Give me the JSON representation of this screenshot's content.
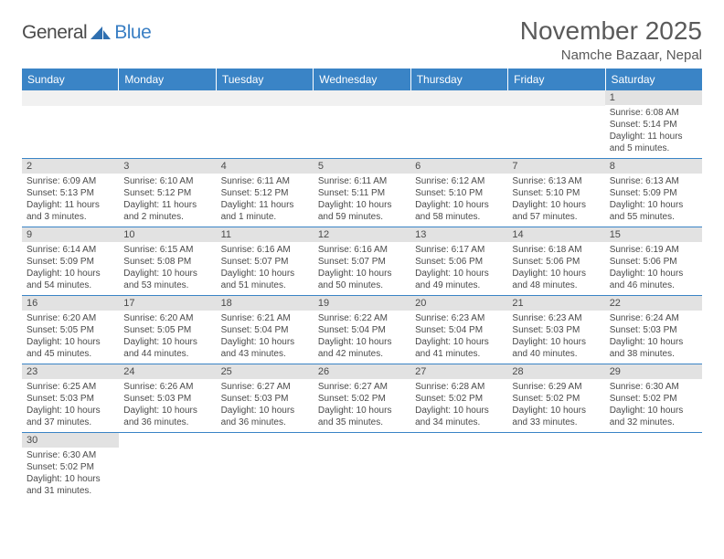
{
  "logo": {
    "text_dark": "General",
    "text_blue": "Blue",
    "dark_color": "#4a4a4a",
    "blue_color": "#3a7fc4",
    "shape_color": "#2f6fb0"
  },
  "title": "November 2025",
  "subtitle": "Namche Bazaar, Nepal",
  "header_bg": "#3a84c6",
  "header_fg": "#ffffff",
  "daynum_bg": "#e2e2e2",
  "row_border": "#3a84c6",
  "text_color": "#4a4a4a",
  "day_names": [
    "Sunday",
    "Monday",
    "Tuesday",
    "Wednesday",
    "Thursday",
    "Friday",
    "Saturday"
  ],
  "weeks": [
    [
      null,
      null,
      null,
      null,
      null,
      null,
      {
        "n": "1",
        "sr": "6:08 AM",
        "ss": "5:14 PM",
        "dl": "11 hours and 5 minutes."
      }
    ],
    [
      {
        "n": "2",
        "sr": "6:09 AM",
        "ss": "5:13 PM",
        "dl": "11 hours and 3 minutes."
      },
      {
        "n": "3",
        "sr": "6:10 AM",
        "ss": "5:12 PM",
        "dl": "11 hours and 2 minutes."
      },
      {
        "n": "4",
        "sr": "6:11 AM",
        "ss": "5:12 PM",
        "dl": "11 hours and 1 minute."
      },
      {
        "n": "5",
        "sr": "6:11 AM",
        "ss": "5:11 PM",
        "dl": "10 hours and 59 minutes."
      },
      {
        "n": "6",
        "sr": "6:12 AM",
        "ss": "5:10 PM",
        "dl": "10 hours and 58 minutes."
      },
      {
        "n": "7",
        "sr": "6:13 AM",
        "ss": "5:10 PM",
        "dl": "10 hours and 57 minutes."
      },
      {
        "n": "8",
        "sr": "6:13 AM",
        "ss": "5:09 PM",
        "dl": "10 hours and 55 minutes."
      }
    ],
    [
      {
        "n": "9",
        "sr": "6:14 AM",
        "ss": "5:09 PM",
        "dl": "10 hours and 54 minutes."
      },
      {
        "n": "10",
        "sr": "6:15 AM",
        "ss": "5:08 PM",
        "dl": "10 hours and 53 minutes."
      },
      {
        "n": "11",
        "sr": "6:16 AM",
        "ss": "5:07 PM",
        "dl": "10 hours and 51 minutes."
      },
      {
        "n": "12",
        "sr": "6:16 AM",
        "ss": "5:07 PM",
        "dl": "10 hours and 50 minutes."
      },
      {
        "n": "13",
        "sr": "6:17 AM",
        "ss": "5:06 PM",
        "dl": "10 hours and 49 minutes."
      },
      {
        "n": "14",
        "sr": "6:18 AM",
        "ss": "5:06 PM",
        "dl": "10 hours and 48 minutes."
      },
      {
        "n": "15",
        "sr": "6:19 AM",
        "ss": "5:06 PM",
        "dl": "10 hours and 46 minutes."
      }
    ],
    [
      {
        "n": "16",
        "sr": "6:20 AM",
        "ss": "5:05 PM",
        "dl": "10 hours and 45 minutes."
      },
      {
        "n": "17",
        "sr": "6:20 AM",
        "ss": "5:05 PM",
        "dl": "10 hours and 44 minutes."
      },
      {
        "n": "18",
        "sr": "6:21 AM",
        "ss": "5:04 PM",
        "dl": "10 hours and 43 minutes."
      },
      {
        "n": "19",
        "sr": "6:22 AM",
        "ss": "5:04 PM",
        "dl": "10 hours and 42 minutes."
      },
      {
        "n": "20",
        "sr": "6:23 AM",
        "ss": "5:04 PM",
        "dl": "10 hours and 41 minutes."
      },
      {
        "n": "21",
        "sr": "6:23 AM",
        "ss": "5:03 PM",
        "dl": "10 hours and 40 minutes."
      },
      {
        "n": "22",
        "sr": "6:24 AM",
        "ss": "5:03 PM",
        "dl": "10 hours and 38 minutes."
      }
    ],
    [
      {
        "n": "23",
        "sr": "6:25 AM",
        "ss": "5:03 PM",
        "dl": "10 hours and 37 minutes."
      },
      {
        "n": "24",
        "sr": "6:26 AM",
        "ss": "5:03 PM",
        "dl": "10 hours and 36 minutes."
      },
      {
        "n": "25",
        "sr": "6:27 AM",
        "ss": "5:03 PM",
        "dl": "10 hours and 36 minutes."
      },
      {
        "n": "26",
        "sr": "6:27 AM",
        "ss": "5:02 PM",
        "dl": "10 hours and 35 minutes."
      },
      {
        "n": "27",
        "sr": "6:28 AM",
        "ss": "5:02 PM",
        "dl": "10 hours and 34 minutes."
      },
      {
        "n": "28",
        "sr": "6:29 AM",
        "ss": "5:02 PM",
        "dl": "10 hours and 33 minutes."
      },
      {
        "n": "29",
        "sr": "6:30 AM",
        "ss": "5:02 PM",
        "dl": "10 hours and 32 minutes."
      }
    ],
    [
      {
        "n": "30",
        "sr": "6:30 AM",
        "ss": "5:02 PM",
        "dl": "10 hours and 31 minutes."
      },
      null,
      null,
      null,
      null,
      null,
      null
    ]
  ],
  "labels": {
    "sunrise": "Sunrise:",
    "sunset": "Sunset:",
    "daylight": "Daylight:"
  }
}
